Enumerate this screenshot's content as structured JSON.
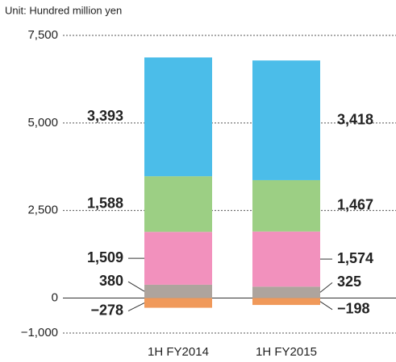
{
  "chart_data": {
    "type": "stacked-bar",
    "unit_label": "Unit: Hundred million yen",
    "categories": [
      "1H FY2014",
      "1H FY2015"
    ],
    "series": [
      {
        "color": "#f0995a",
        "label_color": "#f08a3c",
        "values": [
          -278,
          -198
        ],
        "value_labels": [
          "−278",
          "−198"
        ]
      },
      {
        "color": "#aea49d",
        "label_color": "#8c817a",
        "values": [
          380,
          325
        ],
        "value_labels": [
          "380",
          "325"
        ]
      },
      {
        "color": "#f291bd",
        "label_color": "#e0408a",
        "values": [
          1509,
          1574
        ],
        "value_labels": [
          "1,509",
          "1,574"
        ]
      },
      {
        "color": "#9ccf84",
        "label_color": "#4caf48",
        "values": [
          1588,
          1467
        ],
        "value_labels": [
          "1,588",
          "1,467"
        ]
      },
      {
        "color": "#4bbde9",
        "label_color": "#1ea0d6",
        "values": [
          3393,
          3418
        ],
        "value_labels": [
          "3,393",
          "3,418"
        ]
      }
    ],
    "ylim": [
      -1000,
      7500
    ],
    "yticks": [
      {
        "value": -1000,
        "label": "−1,000"
      },
      0,
      {
        "value": 2500,
        "label": "2,500"
      },
      {
        "value": 5000,
        "label": "5,000"
      },
      {
        "value": 7500,
        "label": "7,500"
      }
    ],
    "grid": true
  }
}
